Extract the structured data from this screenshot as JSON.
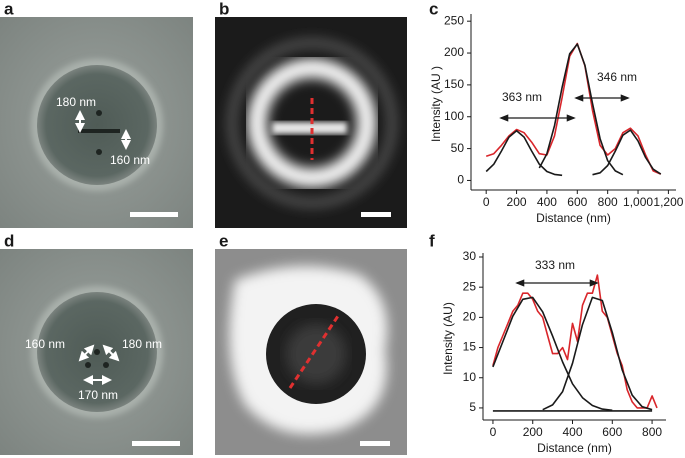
{
  "panel_labels": [
    "a",
    "b",
    "c",
    "d",
    "e",
    "f"
  ],
  "image_annotations": {
    "a": [
      "180 nm",
      "160 nm"
    ],
    "d": [
      "160 nm",
      "180 nm",
      "170 nm"
    ]
  },
  "chart_data": [
    {
      "type": "line",
      "xlabel": "Distance (nm)",
      "ylabel": "Intensity (AU )",
      "annotations": [
        "363 nm",
        "346 nm"
      ],
      "xlim": [
        -100,
        1250
      ],
      "ylim": [
        -15,
        255
      ],
      "xticks": [
        0,
        200,
        400,
        600,
        800,
        {
          "value": 1000,
          "label": "1,000"
        },
        {
          "value": 1200,
          "label": "1,200"
        }
      ],
      "yticks": [
        0,
        50,
        100,
        150,
        200,
        250
      ],
      "series": [
        {
          "color": "#d9262b",
          "x": [
            0,
            50,
            100,
            150,
            200,
            250,
            300,
            350,
            400,
            450,
            500,
            550,
            600,
            650,
            700,
            750,
            800,
            850,
            900,
            950,
            1000,
            1050,
            1100,
            1150
          ],
          "values": [
            38,
            42,
            55,
            70,
            80,
            75,
            60,
            42,
            40,
            70,
            130,
            195,
            215,
            180,
            110,
            55,
            40,
            50,
            75,
            82,
            70,
            40,
            15,
            10
          ]
        },
        {
          "color": "#1a1a1a",
          "x": [
            0,
            50,
            100,
            150,
            200,
            250,
            300,
            350,
            400,
            450,
            500
          ],
          "values": [
            14,
            25.5,
            46,
            68,
            78,
            68,
            46,
            25.5,
            14,
            9.5,
            8
          ]
        },
        {
          "color": "#1a1a1a",
          "x": [
            350,
            400,
            450,
            500,
            550,
            600,
            650,
            700,
            750,
            800,
            850,
            900
          ],
          "values": [
            19.6,
            42,
            86,
            146,
            199,
            214,
            181,
            121,
            65.5,
            31,
            15,
            9
          ]
        },
        {
          "color": "#1a1a1a",
          "x": [
            700,
            750,
            800,
            850,
            900,
            950,
            1000,
            1050,
            1100,
            1150
          ],
          "values": [
            9,
            12,
            23.5,
            46,
            71,
            79,
            62,
            36,
            17.7,
            10
          ]
        }
      ]
    },
    {
      "type": "line",
      "xlabel": "Distance (nm)",
      "ylabel": "Intensity (AU)",
      "annotations": [
        "333 nm"
      ],
      "xlim": [
        -50,
        870
      ],
      "ylim": [
        3,
        30
      ],
      "xticks": [
        0,
        200,
        400,
        600,
        800
      ],
      "yticks": [
        5,
        10,
        15,
        20,
        25,
        30
      ],
      "series": [
        {
          "color": "#d9262b",
          "x": [
            0,
            25,
            50,
            75,
            100,
            125,
            150,
            175,
            200,
            225,
            250,
            275,
            300,
            325,
            350,
            375,
            400,
            425,
            450,
            475,
            500,
            525,
            550,
            575,
            600,
            625,
            650,
            675,
            700,
            725,
            750,
            775,
            800,
            825
          ],
          "values": [
            12,
            15,
            17,
            19,
            21,
            22,
            24,
            24,
            23,
            21,
            20,
            17,
            14,
            14,
            15,
            13,
            19,
            16,
            22,
            24,
            24,
            27,
            21,
            20,
            17,
            14,
            12,
            8,
            6,
            5,
            5,
            5,
            7,
            5
          ]
        },
        {
          "color": "#1a1a1a",
          "x": [
            0,
            50,
            100,
            150,
            200,
            250,
            300,
            350,
            400,
            450,
            500,
            550,
            600
          ],
          "values": [
            11.8,
            16,
            20.2,
            23,
            23.3,
            20.9,
            16.9,
            12.6,
            9,
            6.7,
            5.4,
            4.8,
            4.6
          ]
        },
        {
          "color": "#1a1a1a",
          "x": [
            250,
            300,
            350,
            400,
            450,
            500,
            550,
            600,
            650,
            700,
            750,
            800
          ],
          "values": [
            4.7,
            5.5,
            7.7,
            12.4,
            18.8,
            23.3,
            22.8,
            17.5,
            11.3,
            7.1,
            5.2,
            4.7
          ]
        },
        {
          "color": "#1a1a1a",
          "x": [
            0,
            800
          ],
          "values": [
            4.5,
            4.5
          ]
        }
      ]
    }
  ]
}
